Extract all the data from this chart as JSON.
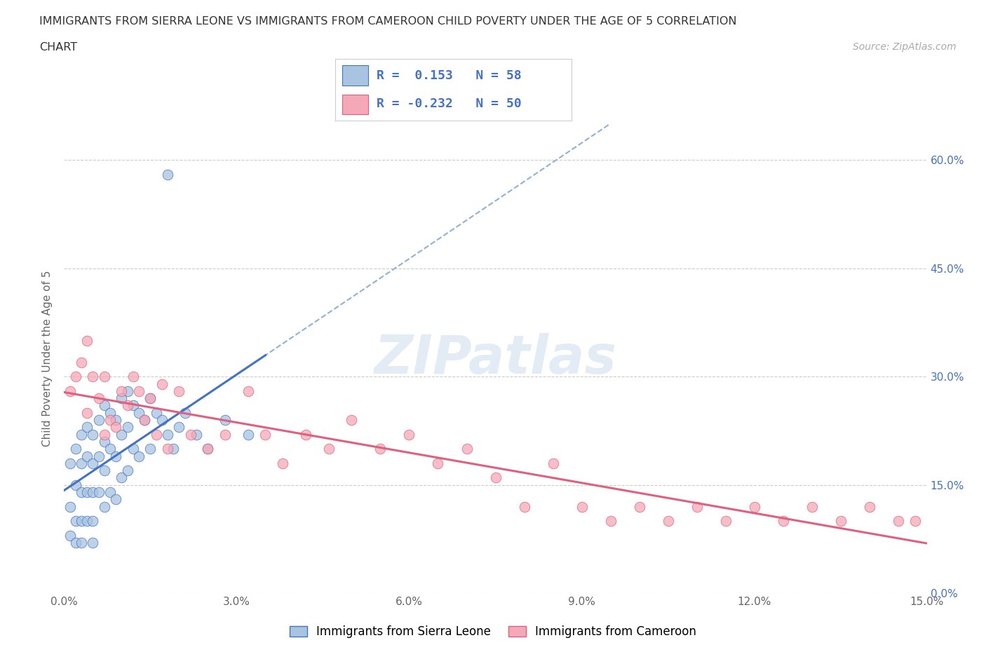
{
  "title_line1": "IMMIGRANTS FROM SIERRA LEONE VS IMMIGRANTS FROM CAMEROON CHILD POVERTY UNDER THE AGE OF 5 CORRELATION",
  "title_line2": "CHART",
  "source_text": "Source: ZipAtlas.com",
  "ylabel": "Child Poverty Under the Age of 5",
  "xlim": [
    0.0,
    0.15
  ],
  "ylim": [
    0.0,
    0.65
  ],
  "xticks": [
    0.0,
    0.03,
    0.06,
    0.09,
    0.12,
    0.15
  ],
  "xticklabels": [
    "0.0%",
    "3.0%",
    "6.0%",
    "9.0%",
    "12.0%",
    "15.0%"
  ],
  "ytick_positions": [
    0.0,
    0.15,
    0.3,
    0.45,
    0.6
  ],
  "ytick_labels_right": [
    "0.0%",
    "15.0%",
    "30.0%",
    "45.0%",
    "60.0%"
  ],
  "r_sierra": 0.153,
  "n_sierra": 58,
  "r_cameroon": -0.232,
  "n_cameroon": 50,
  "color_sierra": "#a8c4e0",
  "color_cameroon": "#f4a8b8",
  "color_regression_sierra": "#4472c4",
  "color_regression_cameroon": "#e06080",
  "watermark": "ZIPatlas",
  "sierra_x": [
    0.001,
    0.001,
    0.001,
    0.002,
    0.002,
    0.002,
    0.002,
    0.003,
    0.003,
    0.003,
    0.003,
    0.003,
    0.004,
    0.004,
    0.004,
    0.004,
    0.005,
    0.005,
    0.005,
    0.005,
    0.005,
    0.006,
    0.006,
    0.006,
    0.007,
    0.007,
    0.007,
    0.007,
    0.008,
    0.008,
    0.008,
    0.009,
    0.009,
    0.009,
    0.01,
    0.01,
    0.01,
    0.011,
    0.011,
    0.011,
    0.012,
    0.012,
    0.013,
    0.013,
    0.014,
    0.015,
    0.015,
    0.016,
    0.017,
    0.018,
    0.019,
    0.02,
    0.021,
    0.023,
    0.025,
    0.028,
    0.032,
    0.018
  ],
  "sierra_y": [
    0.18,
    0.12,
    0.08,
    0.2,
    0.15,
    0.1,
    0.07,
    0.22,
    0.18,
    0.14,
    0.1,
    0.07,
    0.23,
    0.19,
    0.14,
    0.1,
    0.22,
    0.18,
    0.14,
    0.1,
    0.07,
    0.24,
    0.19,
    0.14,
    0.26,
    0.21,
    0.17,
    0.12,
    0.25,
    0.2,
    0.14,
    0.24,
    0.19,
    0.13,
    0.27,
    0.22,
    0.16,
    0.28,
    0.23,
    0.17,
    0.26,
    0.2,
    0.25,
    0.19,
    0.24,
    0.27,
    0.2,
    0.25,
    0.24,
    0.22,
    0.2,
    0.23,
    0.25,
    0.22,
    0.2,
    0.24,
    0.22,
    0.58
  ],
  "cameroon_x": [
    0.001,
    0.002,
    0.003,
    0.004,
    0.004,
    0.005,
    0.006,
    0.007,
    0.007,
    0.008,
    0.009,
    0.01,
    0.011,
    0.012,
    0.013,
    0.014,
    0.015,
    0.016,
    0.017,
    0.018,
    0.02,
    0.022,
    0.025,
    0.028,
    0.032,
    0.035,
    0.038,
    0.042,
    0.046,
    0.05,
    0.055,
    0.06,
    0.065,
    0.07,
    0.075,
    0.08,
    0.085,
    0.09,
    0.095,
    0.1,
    0.105,
    0.11,
    0.115,
    0.12,
    0.125,
    0.13,
    0.135,
    0.14,
    0.145,
    0.148
  ],
  "cameroon_y": [
    0.28,
    0.3,
    0.32,
    0.25,
    0.35,
    0.3,
    0.27,
    0.3,
    0.22,
    0.24,
    0.23,
    0.28,
    0.26,
    0.3,
    0.28,
    0.24,
    0.27,
    0.22,
    0.29,
    0.2,
    0.28,
    0.22,
    0.2,
    0.22,
    0.28,
    0.22,
    0.18,
    0.22,
    0.2,
    0.24,
    0.2,
    0.22,
    0.18,
    0.2,
    0.16,
    0.12,
    0.18,
    0.12,
    0.1,
    0.12,
    0.1,
    0.12,
    0.1,
    0.12,
    0.1,
    0.12,
    0.1,
    0.12,
    0.1,
    0.1
  ],
  "grid_color": "#cccccc",
  "background_color": "#ffffff"
}
